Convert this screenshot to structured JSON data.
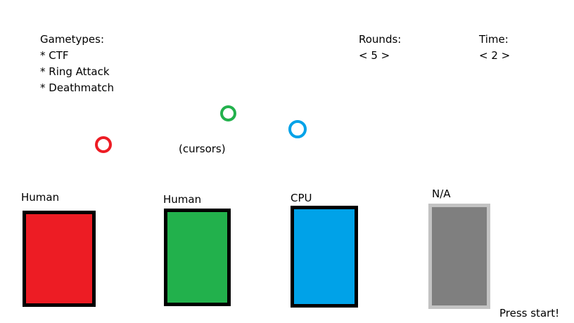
{
  "gametypes": {
    "title": "Gametypes:",
    "items": [
      "* CTF",
      "* Ring Attack",
      "* Deathmatch"
    ]
  },
  "rounds": {
    "label": "Rounds:",
    "value": "< 5 >"
  },
  "time": {
    "label": "Time:",
    "value": "< 2 >"
  },
  "cursors_label": "(cursors)",
  "cursors": [
    {
      "icon": "red-ring-cursor-icon",
      "color": "#ed1c24"
    },
    {
      "icon": "green-ring-cursor-icon",
      "color": "#22b14c"
    },
    {
      "icon": "blue-ring-cursor-icon",
      "color": "#00a2e8"
    }
  ],
  "players": [
    {
      "type": "Human",
      "color": "#ed1c24"
    },
    {
      "type": "Human",
      "color": "#22b14c"
    },
    {
      "type": "CPU",
      "color": "#00a2e8"
    },
    {
      "type": "N/A",
      "color": "#7f7f7f"
    }
  ],
  "press_start": "Press start!"
}
